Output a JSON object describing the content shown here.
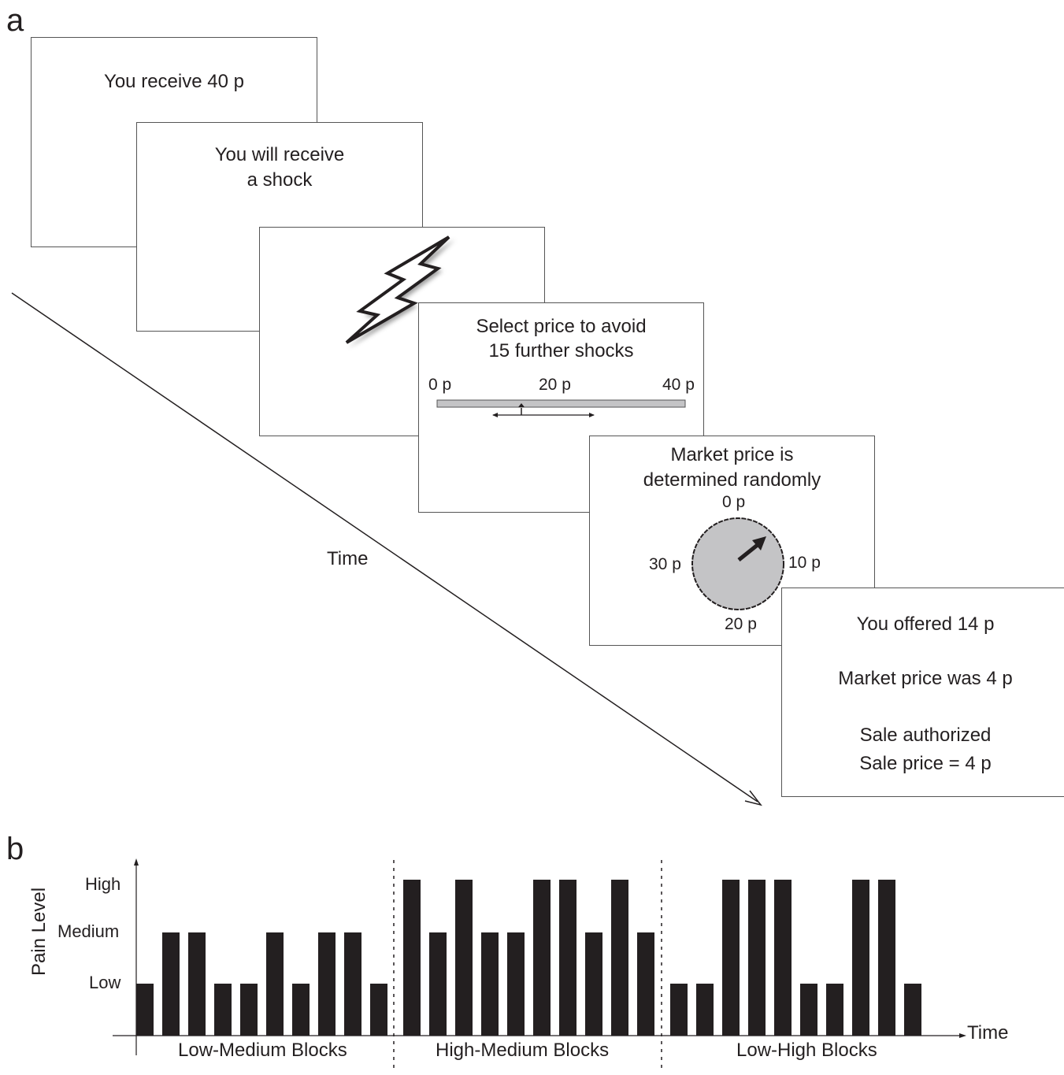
{
  "panel_a": {
    "label": "a",
    "screen1": {
      "text": "You receive 40 p"
    },
    "screen2": {
      "line1": "You will receive",
      "line2": "a shock"
    },
    "screen4": {
      "line1": "Select price to avoid",
      "line2": "15 further shocks",
      "slider_left": "0 p",
      "slider_mid": "20 p",
      "slider_right": "40 p"
    },
    "screen5": {
      "line1": "Market price is",
      "line2": "determined randomly",
      "dial_top": "0 p",
      "dial_right": "10 p",
      "dial_bottom": "20 p",
      "dial_left": "30 p"
    },
    "screen6": {
      "line1": "You offered 14 p",
      "line2": "Market price was 4 p",
      "line3": "Sale authorized",
      "line4": "Sale price = 4 p"
    },
    "time_label": "Time"
  },
  "panel_b": {
    "label": "b",
    "chart_data": {
      "type": "bar",
      "ylabel": "Pain Level",
      "xlabel": "Time",
      "y_levels": [
        "Low",
        "Medium",
        "High"
      ],
      "blocks": [
        {
          "name": "Low-Medium Blocks",
          "values": [
            1,
            2,
            2,
            1,
            1,
            2,
            1,
            2,
            2,
            1
          ]
        },
        {
          "name": "High-Medium Blocks",
          "values": [
            3,
            2,
            3,
            2,
            2,
            3,
            3,
            2,
            3,
            2
          ]
        },
        {
          "name": "Low-High Blocks",
          "values": [
            1,
            1,
            3,
            3,
            3,
            1,
            1,
            3,
            3,
            1
          ]
        }
      ]
    }
  },
  "colors": {
    "ink": "#231f20",
    "panel_gray": "#c4c4c6",
    "border": "#555555"
  }
}
